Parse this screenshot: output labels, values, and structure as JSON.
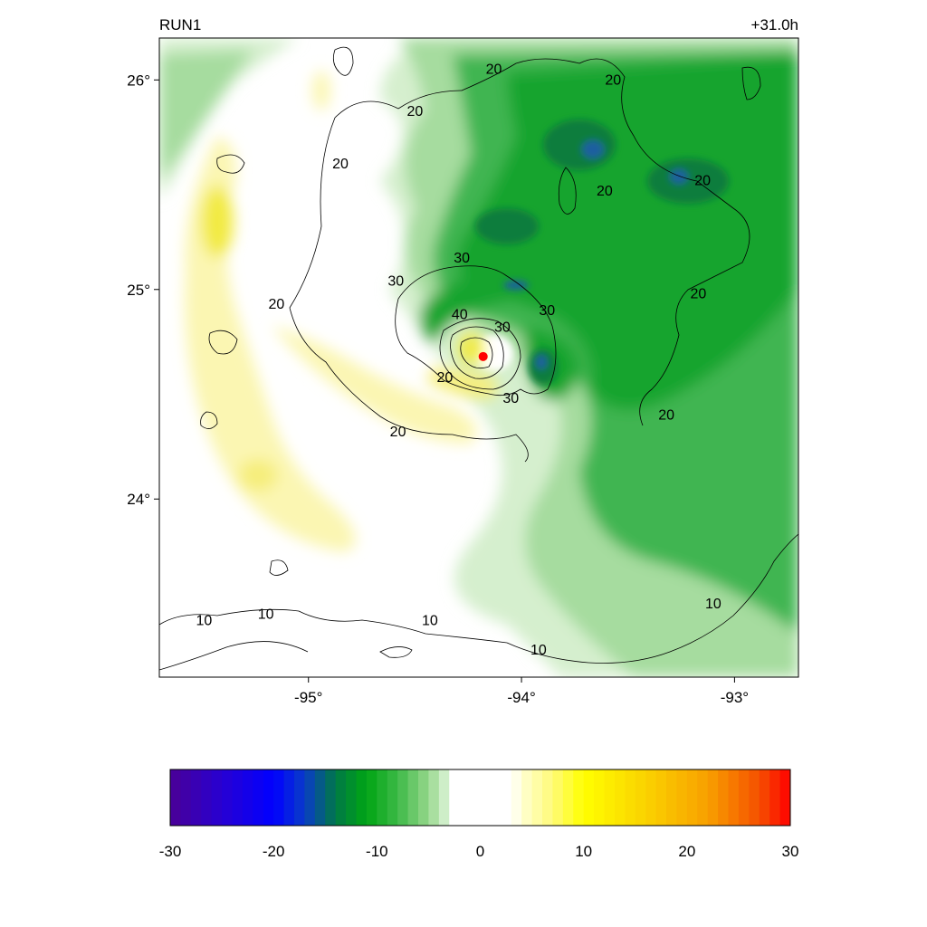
{
  "title_left": "RUN1",
  "title_right": "+31.0h",
  "map": {
    "lat_ticks": [
      {
        "value": 26,
        "label": "26°"
      },
      {
        "value": 25,
        "label": "25°"
      },
      {
        "value": 24,
        "label": "24°"
      }
    ],
    "lon_ticks": [
      {
        "value": -95,
        "label": "-95°"
      },
      {
        "value": -94,
        "label": "-94°"
      },
      {
        "value": -93,
        "label": "-93°"
      }
    ],
    "lon_range": [
      -95.7,
      -92.7
    ],
    "lat_range": [
      23.15,
      26.2
    ],
    "storm_center": {
      "lon": -94.18,
      "lat": 24.68,
      "color": "#ff0000"
    },
    "contour_labels": [
      {
        "text": "20",
        "lon": -94.5,
        "lat": 25.85
      },
      {
        "text": "20",
        "lon": -94.13,
        "lat": 26.05
      },
      {
        "text": "20",
        "lon": -93.57,
        "lat": 26.0
      },
      {
        "text": "20",
        "lon": -94.85,
        "lat": 25.6
      },
      {
        "text": "20",
        "lon": -93.15,
        "lat": 25.52
      },
      {
        "text": "20",
        "lon": -93.61,
        "lat": 25.47
      },
      {
        "text": "20",
        "lon": -95.15,
        "lat": 24.93
      },
      {
        "text": "20",
        "lon": -93.17,
        "lat": 24.98
      },
      {
        "text": "20",
        "lon": -93.32,
        "lat": 24.4
      },
      {
        "text": "20",
        "lon": -94.36,
        "lat": 24.58
      },
      {
        "text": "20",
        "lon": -94.58,
        "lat": 24.32
      },
      {
        "text": "30",
        "lon": -94.28,
        "lat": 25.15
      },
      {
        "text": "30",
        "lon": -94.59,
        "lat": 25.04
      },
      {
        "text": "30",
        "lon": -93.88,
        "lat": 24.9
      },
      {
        "text": "30",
        "lon": -94.09,
        "lat": 24.82
      },
      {
        "text": "30",
        "lon": -94.05,
        "lat": 24.48
      },
      {
        "text": "40",
        "lon": -94.29,
        "lat": 24.88
      },
      {
        "text": "10",
        "lon": -95.2,
        "lat": 23.45
      },
      {
        "text": "10",
        "lon": -95.49,
        "lat": 23.42
      },
      {
        "text": "10",
        "lon": -94.43,
        "lat": 23.42
      },
      {
        "text": "10",
        "lon": -93.92,
        "lat": 23.28
      },
      {
        "text": "10",
        "lon": -93.1,
        "lat": 23.5
      }
    ]
  },
  "colorbar": {
    "min": -30,
    "max": 30,
    "tick_labels": [
      "-30",
      "-20",
      "-10",
      "0",
      "10",
      "20",
      "30"
    ]
  },
  "colors": {
    "deep_green": "#12a42e",
    "mid_green": "#3fb551",
    "light_green": "#a6dc9f",
    "pale_green": "#d5efce",
    "dark_green": "#0a7d3c",
    "blue_core": "#1f5fa0",
    "pale_yellow": "#fbf6b2",
    "light_yellow": "#f6ee7c",
    "yellow": "#f2ea42"
  }
}
